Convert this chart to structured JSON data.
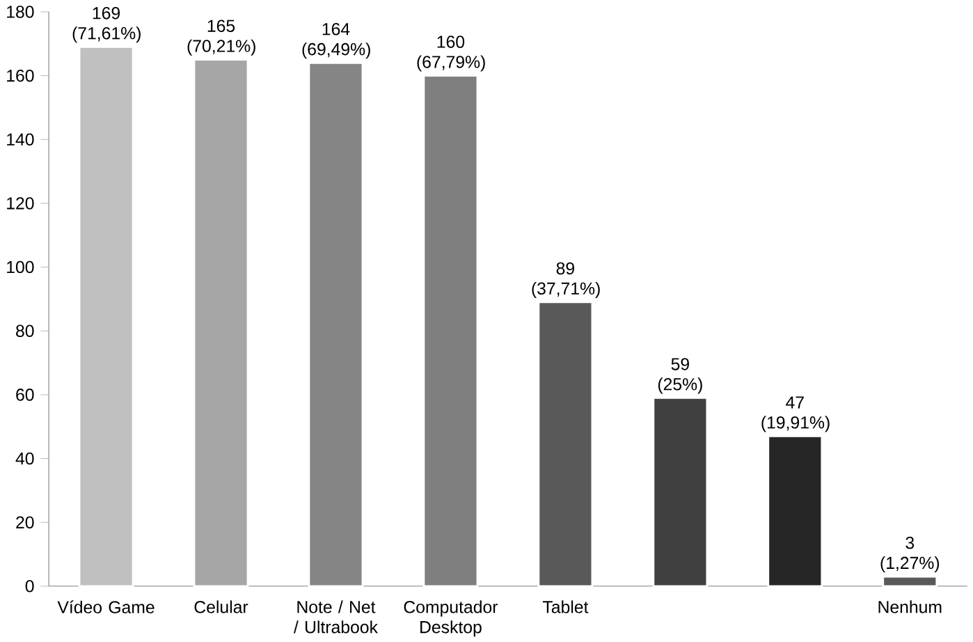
{
  "chart_data": {
    "type": "bar",
    "categories": [
      "Vídeo Game",
      "Celular",
      "Note / Net / Ultrabook",
      "Computador Desktop",
      "Tablet",
      null,
      null,
      "Nenhum"
    ],
    "values": [
      169,
      165,
      164,
      160,
      89,
      59,
      47,
      3
    ],
    "colors": [
      "#c0c0c0",
      "#a6a6a6",
      "#858585",
      "#7f7f7f",
      "#595959",
      "#404040",
      "#262626",
      "#595959"
    ],
    "value_labels": [
      "169 (71,61%)",
      "165 (70,21%)",
      "164 (69,49%)",
      "160 (67,79%)",
      "89 (37,71%)",
      "59 (25%)",
      "47 (19,91%)",
      "3 (1,27%)"
    ],
    "ylim": [
      0,
      180
    ],
    "yticks": [
      0,
      20,
      40,
      60,
      80,
      100,
      120,
      140,
      160,
      180
    ],
    "grid": false
  }
}
